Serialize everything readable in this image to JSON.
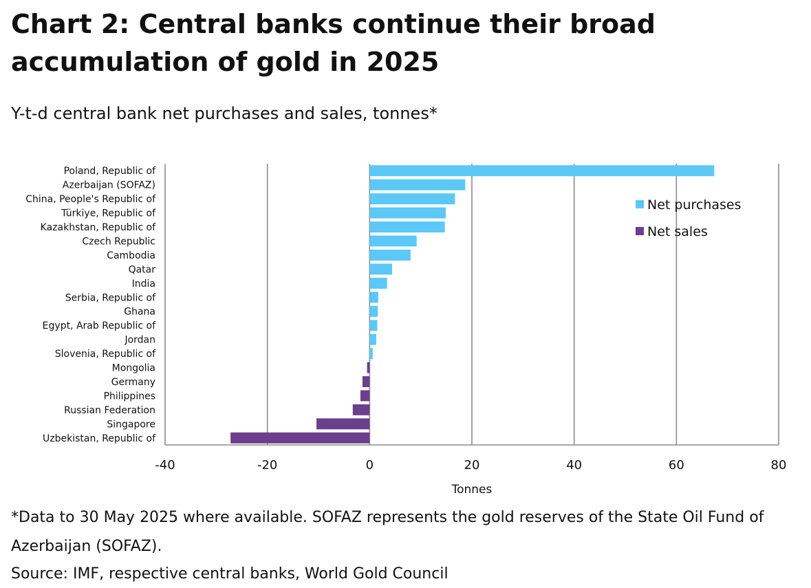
{
  "page": {
    "title": "Chart 2: Central banks continue their broad accumulation of gold in 2025",
    "subtitle": "Y-t-d central bank net purchases and sales, tonnes*",
    "footnote": "*Data to 30 May 2025 where available. SOFAZ represents the gold reserves of the State Oil Fund of Azerbaijan (SOFAZ).",
    "source": "Source: IMF, respective central banks, World Gold Council"
  },
  "chart_data": {
    "type": "bar",
    "orientation": "horizontal",
    "categories": [
      "Poland, Republic of",
      "Azerbaijan (SOFAZ)",
      "China, People's Republic of",
      "Türkiye, Republic of",
      "Kazakhstan, Republic of",
      "Czech Republic",
      "Cambodia",
      "Qatar",
      "India",
      "Serbia, Republic of",
      "Ghana",
      "Egypt, Arab Republic of",
      "Jordan",
      "Slovenia, Republic of",
      "Mongolia",
      "Germany",
      "Philippines",
      "Russian Federation",
      "Singapore",
      "Uzbekistan, Republic of"
    ],
    "values": [
      67.4,
      18.7,
      16.7,
      14.9,
      14.7,
      9.2,
      8.0,
      4.4,
      3.4,
      1.7,
      1.6,
      1.5,
      1.3,
      0.6,
      -0.5,
      -1.4,
      -1.8,
      -3.3,
      -10.4,
      -27.2
    ],
    "series": [
      {
        "name": "Net purchases",
        "color": "#5BC8F8"
      },
      {
        "name": "Net sales",
        "color": "#6C3F8C"
      }
    ],
    "xlabel": "Tonnes",
    "xlim": [
      -40,
      80
    ],
    "xticks": [
      -40,
      -20,
      0,
      20,
      40,
      60,
      80
    ],
    "grid": "vertical",
    "legend_position": "top-right"
  }
}
